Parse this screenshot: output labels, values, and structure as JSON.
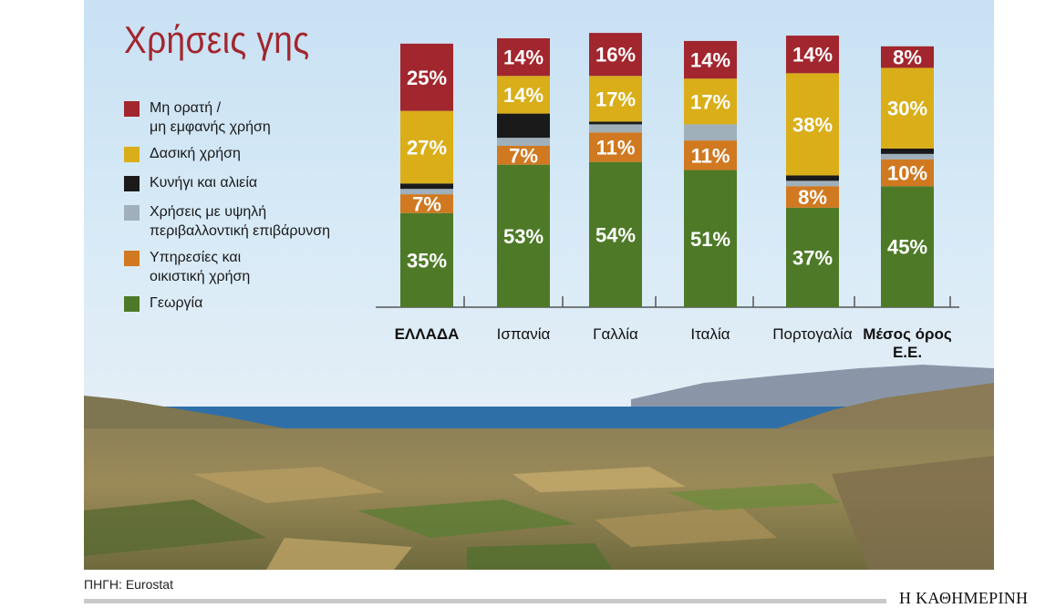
{
  "source": "ΠΗΓΗ: Eurostat",
  "brand": "Η ΚΑΘΗΜΕΡΙΝΗ",
  "chart_data": {
    "type": "bar",
    "stacked": true,
    "orientation": "vertical",
    "title": "Χρήσεις γης",
    "categories": [
      "ΕΛΛΑΔΑ",
      "Ισπανία",
      "Γαλλία",
      "Ιταλία",
      "Πορτογαλία",
      "Μέσος όρος Ε.Ε."
    ],
    "category_lines": [
      [
        "ΕΛΛΑΔΑ"
      ],
      [
        "Ισπανία"
      ],
      [
        "Γαλλία"
      ],
      [
        "Ιταλία"
      ],
      [
        "Πορτογαλία"
      ],
      [
        "Μέσος όρος",
        "Ε.Ε."
      ]
    ],
    "ylim": [
      0,
      100
    ],
    "legend_position": "left",
    "series": [
      {
        "name": "Γεωργία",
        "color": "#4e7a28",
        "values": [
          35,
          53,
          54,
          51,
          37,
          45
        ],
        "labels": [
          "35%",
          "53%",
          "54%",
          "51%",
          "37%",
          "45%"
        ]
      },
      {
        "name": "Υπηρεσίες και οικιστική χρήση",
        "legend_lines": [
          "Υπηρεσίες και",
          "οικιστική χρήση"
        ],
        "color": "#d07920",
        "values": [
          7,
          7,
          11,
          11,
          8,
          10
        ],
        "labels": [
          "7%",
          "7%",
          "11%",
          "11%",
          "8%",
          "10%"
        ]
      },
      {
        "name": "Χρήσεις με υψηλή περιβαλλοντική επιβάρυνση",
        "legend_lines": [
          "Χρήσεις με υψηλή",
          "περιβαλλοντική επιβάρυνση"
        ],
        "color": "#9fb0bb",
        "values": [
          2,
          3,
          3,
          6,
          2,
          2
        ],
        "labels": [
          "",
          "",
          "",
          "",
          "",
          ""
        ]
      },
      {
        "name": "Κυνήγι και αλιεία",
        "color": "#1a1a1a",
        "values": [
          2,
          9,
          1,
          0,
          2,
          2
        ],
        "labels": [
          "",
          "",
          "",
          "",
          "",
          ""
        ]
      },
      {
        "name": "Δασική χρήση",
        "color": "#d9ae19",
        "values": [
          27,
          14,
          17,
          17,
          38,
          30
        ],
        "labels": [
          "27%",
          "14%",
          "17%",
          "17%",
          "38%",
          "30%"
        ]
      },
      {
        "name": "Μη ορατή / μη εμφανής χρήση",
        "legend_lines": [
          "Μη ορατή /",
          "μη εμφανής χρήση"
        ],
        "color": "#a2262e",
        "values": [
          25,
          14,
          16,
          14,
          14,
          8
        ],
        "labels": [
          "25%",
          "14%",
          "16%",
          "14%",
          "14%",
          "8%"
        ]
      }
    ],
    "legend_order": [
      5,
      4,
      3,
      2,
      1,
      0
    ]
  }
}
